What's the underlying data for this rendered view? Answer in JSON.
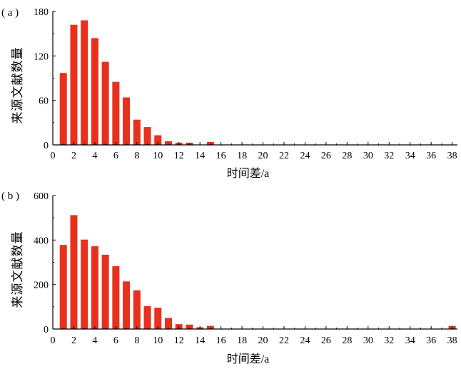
{
  "colors": {
    "bar": "#e8301c",
    "axis": "#000000"
  },
  "chart_data": [
    {
      "type": "bar",
      "panel_label": "( a )",
      "xlabel": "时间差/a",
      "ylabel": "来源文献数量",
      "xlim": [
        0,
        38.5
      ],
      "ylim": [
        0,
        180
      ],
      "xticks": [
        0,
        2,
        4,
        6,
        8,
        10,
        12,
        14,
        16,
        18,
        20,
        22,
        24,
        26,
        28,
        30,
        32,
        34,
        36,
        38
      ],
      "yticks": [
        0,
        60,
        120,
        180
      ],
      "x": [
        1,
        2,
        3,
        4,
        5,
        6,
        7,
        8,
        9,
        10,
        11,
        12,
        13,
        14,
        15,
        16,
        17,
        18,
        19,
        20,
        21,
        22,
        23,
        24,
        25,
        26,
        27,
        28,
        29,
        30,
        31,
        32,
        33,
        34,
        35,
        36,
        37,
        38
      ],
      "values": [
        97,
        162,
        168,
        144,
        112,
        85,
        64,
        34,
        24,
        13,
        5,
        3,
        3,
        0,
        4,
        0,
        0,
        0,
        0,
        0,
        0,
        0,
        0,
        0,
        0,
        0,
        0,
        0,
        0,
        0,
        0,
        0,
        0,
        0,
        0,
        0,
        0,
        0
      ]
    },
    {
      "type": "bar",
      "panel_label": "( b )",
      "xlabel": "时间差/a",
      "ylabel": "来源文献数量",
      "xlim": [
        0,
        38.5
      ],
      "ylim": [
        0,
        600
      ],
      "xticks": [
        0,
        2,
        4,
        6,
        8,
        10,
        12,
        14,
        16,
        18,
        20,
        22,
        24,
        26,
        28,
        30,
        32,
        34,
        36,
        38
      ],
      "yticks": [
        0,
        200,
        400,
        600
      ],
      "x": [
        1,
        2,
        3,
        4,
        5,
        6,
        7,
        8,
        9,
        10,
        11,
        12,
        13,
        14,
        15,
        16,
        17,
        18,
        19,
        20,
        21,
        22,
        23,
        24,
        25,
        26,
        27,
        28,
        29,
        30,
        31,
        32,
        33,
        34,
        35,
        36,
        37,
        38
      ],
      "values": [
        378,
        512,
        402,
        372,
        334,
        283,
        214,
        174,
        103,
        96,
        50,
        22,
        20,
        8,
        14,
        0,
        0,
        0,
        0,
        0,
        0,
        0,
        0,
        0,
        0,
        0,
        0,
        0,
        0,
        0,
        0,
        0,
        0,
        0,
        0,
        0,
        0,
        14
      ]
    }
  ]
}
